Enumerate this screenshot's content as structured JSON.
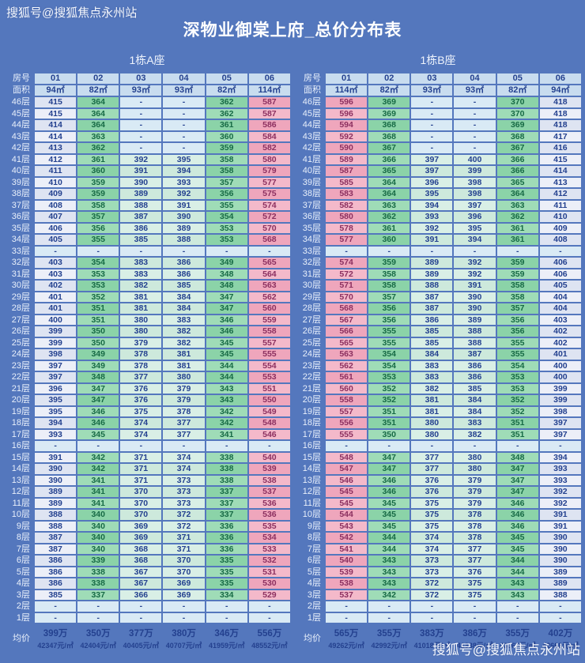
{
  "title": "深物业御棠上府_总价分布表",
  "watermark_top": "搜狐号@搜狐焦点永州站",
  "watermark_bottom": "搜狐号@搜狐焦点永州站",
  "colors": {
    "page_background": "#5477bd",
    "header_cell": "#c8dcef",
    "plain_column": "#e4e9f5",
    "green_column": "#93d6ae",
    "mint_column": "#d2ecе0",
    "pink_column": "#f2b0c3",
    "dash_cell": "#d9eaf5",
    "value_text": "#24418f"
  },
  "chart_data": [
    {
      "type": "table",
      "title": "1栋A座",
      "row_header": "房号",
      "area_header": "面积",
      "avg_header": "均价",
      "columns": [
        "01",
        "02",
        "03",
        "04",
        "05",
        "06"
      ],
      "areas": [
        "94㎡",
        "82㎡",
        "93㎡",
        "93㎡",
        "82㎡",
        "114㎡"
      ],
      "column_styles": [
        "plain",
        "green",
        "mint",
        "mint",
        "green",
        "pink"
      ],
      "rows": [
        [
          "46层",
          "415",
          "364",
          "-",
          "-",
          "362",
          "587"
        ],
        [
          "45层",
          "415",
          "364",
          "-",
          "-",
          "362",
          "587"
        ],
        [
          "44层",
          "414",
          "364",
          "-",
          "-",
          "361",
          "586"
        ],
        [
          "43层",
          "414",
          "363",
          "-",
          "-",
          "360",
          "584"
        ],
        [
          "42层",
          "413",
          "362",
          "-",
          "-",
          "359",
          "582"
        ],
        [
          "41层",
          "412",
          "361",
          "392",
          "395",
          "358",
          "580"
        ],
        [
          "40层",
          "411",
          "360",
          "391",
          "394",
          "358",
          "579"
        ],
        [
          "39层",
          "410",
          "359",
          "390",
          "393",
          "357",
          "577"
        ],
        [
          "38层",
          "409",
          "359",
          "389",
          "392",
          "356",
          "575"
        ],
        [
          "37层",
          "408",
          "358",
          "388",
          "391",
          "355",
          "574"
        ],
        [
          "36层",
          "407",
          "357",
          "387",
          "390",
          "354",
          "572"
        ],
        [
          "35层",
          "406",
          "356",
          "386",
          "389",
          "353",
          "570"
        ],
        [
          "34层",
          "405",
          "355",
          "385",
          "388",
          "353",
          "568"
        ],
        [
          "33层",
          "-",
          "-",
          "-",
          "-",
          "-",
          "-"
        ],
        [
          "32层",
          "403",
          "354",
          "383",
          "386",
          "349",
          "565"
        ],
        [
          "31层",
          "403",
          "353",
          "383",
          "386",
          "348",
          "564"
        ],
        [
          "30层",
          "402",
          "353",
          "382",
          "385",
          "348",
          "563"
        ],
        [
          "29层",
          "401",
          "352",
          "381",
          "384",
          "347",
          "562"
        ],
        [
          "28层",
          "401",
          "351",
          "381",
          "384",
          "347",
          "560"
        ],
        [
          "27层",
          "400",
          "351",
          "380",
          "383",
          "346",
          "559"
        ],
        [
          "26层",
          "399",
          "350",
          "380",
          "382",
          "346",
          "558"
        ],
        [
          "25层",
          "399",
          "350",
          "379",
          "382",
          "345",
          "557"
        ],
        [
          "24层",
          "398",
          "349",
          "378",
          "381",
          "345",
          "555"
        ],
        [
          "23层",
          "397",
          "349",
          "378",
          "381",
          "344",
          "554"
        ],
        [
          "22层",
          "397",
          "348",
          "377",
          "380",
          "344",
          "553"
        ],
        [
          "21层",
          "396",
          "347",
          "376",
          "379",
          "343",
          "551"
        ],
        [
          "20层",
          "395",
          "347",
          "376",
          "379",
          "343",
          "550"
        ],
        [
          "19层",
          "395",
          "346",
          "375",
          "378",
          "342",
          "549"
        ],
        [
          "18层",
          "394",
          "346",
          "374",
          "377",
          "342",
          "548"
        ],
        [
          "17层",
          "393",
          "345",
          "374",
          "377",
          "341",
          "546"
        ],
        [
          "16层",
          "-",
          "-",
          "-",
          "-",
          "-",
          "-"
        ],
        [
          "15层",
          "391",
          "342",
          "371",
          "374",
          "338",
          "540"
        ],
        [
          "14层",
          "390",
          "342",
          "371",
          "374",
          "338",
          "539"
        ],
        [
          "13层",
          "390",
          "341",
          "371",
          "373",
          "338",
          "538"
        ],
        [
          "12层",
          "389",
          "341",
          "370",
          "373",
          "337",
          "537"
        ],
        [
          "11层",
          "389",
          "341",
          "370",
          "373",
          "337",
          "536"
        ],
        [
          "10层",
          "388",
          "340",
          "370",
          "372",
          "337",
          "536"
        ],
        [
          "9层",
          "388",
          "340",
          "369",
          "372",
          "336",
          "535"
        ],
        [
          "8层",
          "387",
          "340",
          "369",
          "371",
          "336",
          "534"
        ],
        [
          "7层",
          "387",
          "340",
          "368",
          "371",
          "336",
          "533"
        ],
        [
          "6层",
          "386",
          "339",
          "368",
          "370",
          "335",
          "532"
        ],
        [
          "5层",
          "386",
          "338",
          "367",
          "370",
          "335",
          "531"
        ],
        [
          "4层",
          "386",
          "338",
          "367",
          "369",
          "335",
          "530"
        ],
        [
          "3层",
          "385",
          "337",
          "366",
          "369",
          "334",
          "529"
        ],
        [
          "2层",
          "-",
          "-",
          "-",
          "-",
          "-",
          "-"
        ],
        [
          "1层",
          "-",
          "-",
          "-",
          "-",
          "-",
          "-"
        ]
      ],
      "avg_prices": [
        "399万",
        "350万",
        "377万",
        "380万",
        "346万",
        "556万"
      ],
      "avg_units": [
        "42347元/㎡",
        "42404元/㎡",
        "40405元/㎡",
        "40707元/㎡",
        "41959元/㎡",
        "48552元/㎡"
      ]
    },
    {
      "type": "table",
      "title": "1栋B座",
      "row_header": "房号",
      "area_header": "面积",
      "avg_header": "均价",
      "columns": [
        "01",
        "02",
        "03",
        "04",
        "05",
        "06"
      ],
      "areas": [
        "114㎡",
        "82㎡",
        "93㎡",
        "93㎡",
        "82㎡",
        "94㎡"
      ],
      "column_styles": [
        "pink",
        "green",
        "mint",
        "mint",
        "green",
        "plain"
      ],
      "rows": [
        [
          "46层",
          "596",
          "369",
          "-",
          "-",
          "370",
          "418"
        ],
        [
          "45层",
          "596",
          "369",
          "-",
          "-",
          "370",
          "418"
        ],
        [
          "44层",
          "594",
          "368",
          "-",
          "-",
          "369",
          "418"
        ],
        [
          "43层",
          "592",
          "368",
          "-",
          "-",
          "368",
          "417"
        ],
        [
          "42层",
          "590",
          "367",
          "-",
          "-",
          "367",
          "416"
        ],
        [
          "41层",
          "589",
          "366",
          "397",
          "400",
          "366",
          "415"
        ],
        [
          "40层",
          "587",
          "365",
          "397",
          "399",
          "366",
          "414"
        ],
        [
          "39层",
          "585",
          "364",
          "396",
          "398",
          "365",
          "413"
        ],
        [
          "38层",
          "583",
          "364",
          "395",
          "398",
          "364",
          "412"
        ],
        [
          "37层",
          "582",
          "363",
          "394",
          "397",
          "363",
          "411"
        ],
        [
          "36层",
          "580",
          "362",
          "393",
          "396",
          "362",
          "410"
        ],
        [
          "35层",
          "578",
          "361",
          "392",
          "395",
          "361",
          "409"
        ],
        [
          "34层",
          "577",
          "360",
          "391",
          "394",
          "361",
          "408"
        ],
        [
          "33层",
          "-",
          "-",
          "-",
          "-",
          "-",
          "-"
        ],
        [
          "32层",
          "574",
          "359",
          "389",
          "392",
          "359",
          "406"
        ],
        [
          "31层",
          "572",
          "358",
          "389",
          "392",
          "359",
          "406"
        ],
        [
          "30层",
          "571",
          "358",
          "388",
          "391",
          "358",
          "405"
        ],
        [
          "29层",
          "570",
          "357",
          "387",
          "390",
          "358",
          "404"
        ],
        [
          "28层",
          "568",
          "356",
          "387",
          "390",
          "357",
          "404"
        ],
        [
          "27层",
          "567",
          "356",
          "386",
          "389",
          "356",
          "403"
        ],
        [
          "26层",
          "566",
          "355",
          "385",
          "388",
          "356",
          "402"
        ],
        [
          "25层",
          "565",
          "355",
          "385",
          "388",
          "355",
          "402"
        ],
        [
          "24层",
          "563",
          "354",
          "384",
          "387",
          "355",
          "401"
        ],
        [
          "23层",
          "562",
          "354",
          "383",
          "386",
          "354",
          "400"
        ],
        [
          "22层",
          "561",
          "353",
          "383",
          "386",
          "353",
          "400"
        ],
        [
          "21层",
          "560",
          "352",
          "382",
          "385",
          "353",
          "399"
        ],
        [
          "20层",
          "558",
          "352",
          "381",
          "384",
          "352",
          "399"
        ],
        [
          "19层",
          "557",
          "351",
          "381",
          "384",
          "352",
          "398"
        ],
        [
          "18层",
          "556",
          "351",
          "380",
          "383",
          "351",
          "397"
        ],
        [
          "17层",
          "555",
          "350",
          "380",
          "382",
          "351",
          "397"
        ],
        [
          "16层",
          "-",
          "-",
          "-",
          "-",
          "-",
          "-"
        ],
        [
          "15层",
          "548",
          "347",
          "377",
          "380",
          "348",
          "394"
        ],
        [
          "14层",
          "547",
          "347",
          "377",
          "380",
          "347",
          "393"
        ],
        [
          "13层",
          "546",
          "346",
          "376",
          "379",
          "347",
          "393"
        ],
        [
          "12层",
          "545",
          "346",
          "376",
          "379",
          "347",
          "392"
        ],
        [
          "11层",
          "545",
          "345",
          "375",
          "379",
          "346",
          "392"
        ],
        [
          "10层",
          "544",
          "345",
          "375",
          "378",
          "346",
          "391"
        ],
        [
          "9层",
          "543",
          "345",
          "375",
          "378",
          "346",
          "391"
        ],
        [
          "8层",
          "542",
          "344",
          "374",
          "378",
          "345",
          "390"
        ],
        [
          "7层",
          "541",
          "344",
          "374",
          "377",
          "345",
          "390"
        ],
        [
          "6层",
          "540",
          "343",
          "373",
          "377",
          "344",
          "390"
        ],
        [
          "5层",
          "539",
          "343",
          "373",
          "376",
          "344",
          "389"
        ],
        [
          "4层",
          "538",
          "343",
          "372",
          "375",
          "343",
          "389"
        ],
        [
          "3层",
          "537",
          "342",
          "372",
          "375",
          "343",
          "388"
        ],
        [
          "2层",
          "-",
          "-",
          "-",
          "-",
          "-",
          "-"
        ],
        [
          "1层",
          "-",
          "-",
          "-",
          "-",
          "-",
          "-"
        ]
      ],
      "avg_prices": [
        "565万",
        "355万",
        "383万",
        "386万",
        "355万",
        "402万"
      ],
      "avg_units": [
        "49262元/㎡",
        "42992元/㎡",
        "41018元/㎡",
        "41338元/㎡",
        "43065元/㎡",
        "42668元/㎡"
      ]
    }
  ]
}
